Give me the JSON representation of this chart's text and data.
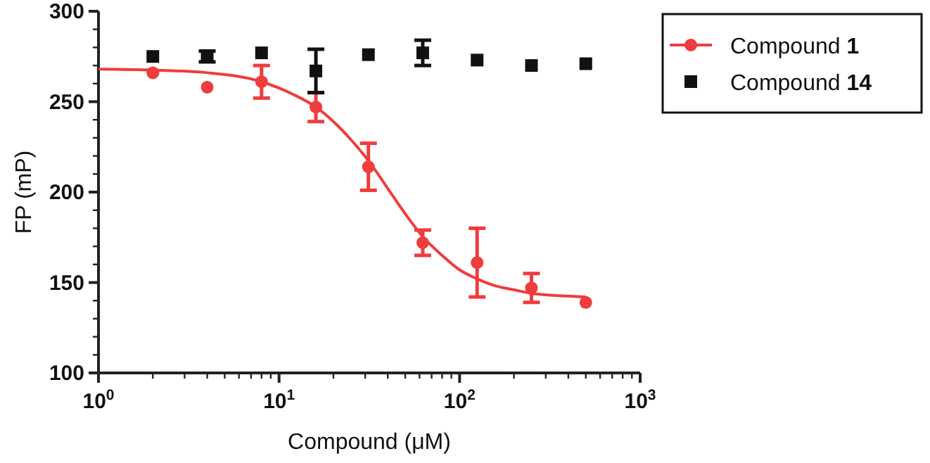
{
  "chart_data": {
    "type": "scatter",
    "xlabel": "Compound (μM)",
    "ylabel": "FP (mP)",
    "log": "x",
    "xlim": [
      1,
      1000
    ],
    "xticks": [
      {
        "value": 1,
        "label": "10$^{0}$"
      },
      {
        "value": 10,
        "label": "10$^{1}$"
      },
      {
        "value": 100,
        "label": "10$^{2}$"
      },
      {
        "value": 1000,
        "label": "10$^{3}$"
      }
    ],
    "ylim": [
      100,
      300
    ],
    "yticks": [
      100,
      150,
      200,
      250,
      300
    ],
    "grid": false,
    "legend": "top right",
    "series": [
      {
        "type": "line",
        "color": "#f03c3c",
        "marker": "none",
        "line_style": "solid",
        "x": [
          1,
          2,
          4,
          8,
          12,
          16,
          20,
          25,
          32,
          40,
          50,
          63,
          80,
          100,
          125,
          160,
          200,
          250,
          320,
          400,
          500
        ],
        "values": [
          268,
          267.5,
          266,
          261,
          254,
          247,
          239,
          229,
          216,
          202,
          188,
          175,
          165,
          157,
          152,
          148,
          146,
          144,
          143,
          142.5,
          142
        ]
      },
      {
        "name": "Compound 1",
        "color": "#f03c3c",
        "marker": "circle",
        "x": [
          2,
          4,
          8,
          16,
          31.25,
          62.5,
          125,
          250,
          500
        ],
        "values": [
          266,
          258,
          261,
          247,
          214,
          172,
          161,
          147,
          139
        ],
        "errors": [
          null,
          null,
          9,
          8,
          13,
          7,
          19,
          8,
          null
        ]
      },
      {
        "name": "Compound 14",
        "color": "#111111",
        "marker": "square",
        "x": [
          2,
          4,
          8,
          16,
          31.25,
          62.5,
          125,
          250,
          500
        ],
        "values": [
          275,
          275,
          277,
          267,
          276,
          277,
          273,
          270,
          271
        ],
        "errors": [
          null,
          3,
          null,
          12,
          null,
          7,
          null,
          null,
          null
        ]
      }
    ]
  }
}
